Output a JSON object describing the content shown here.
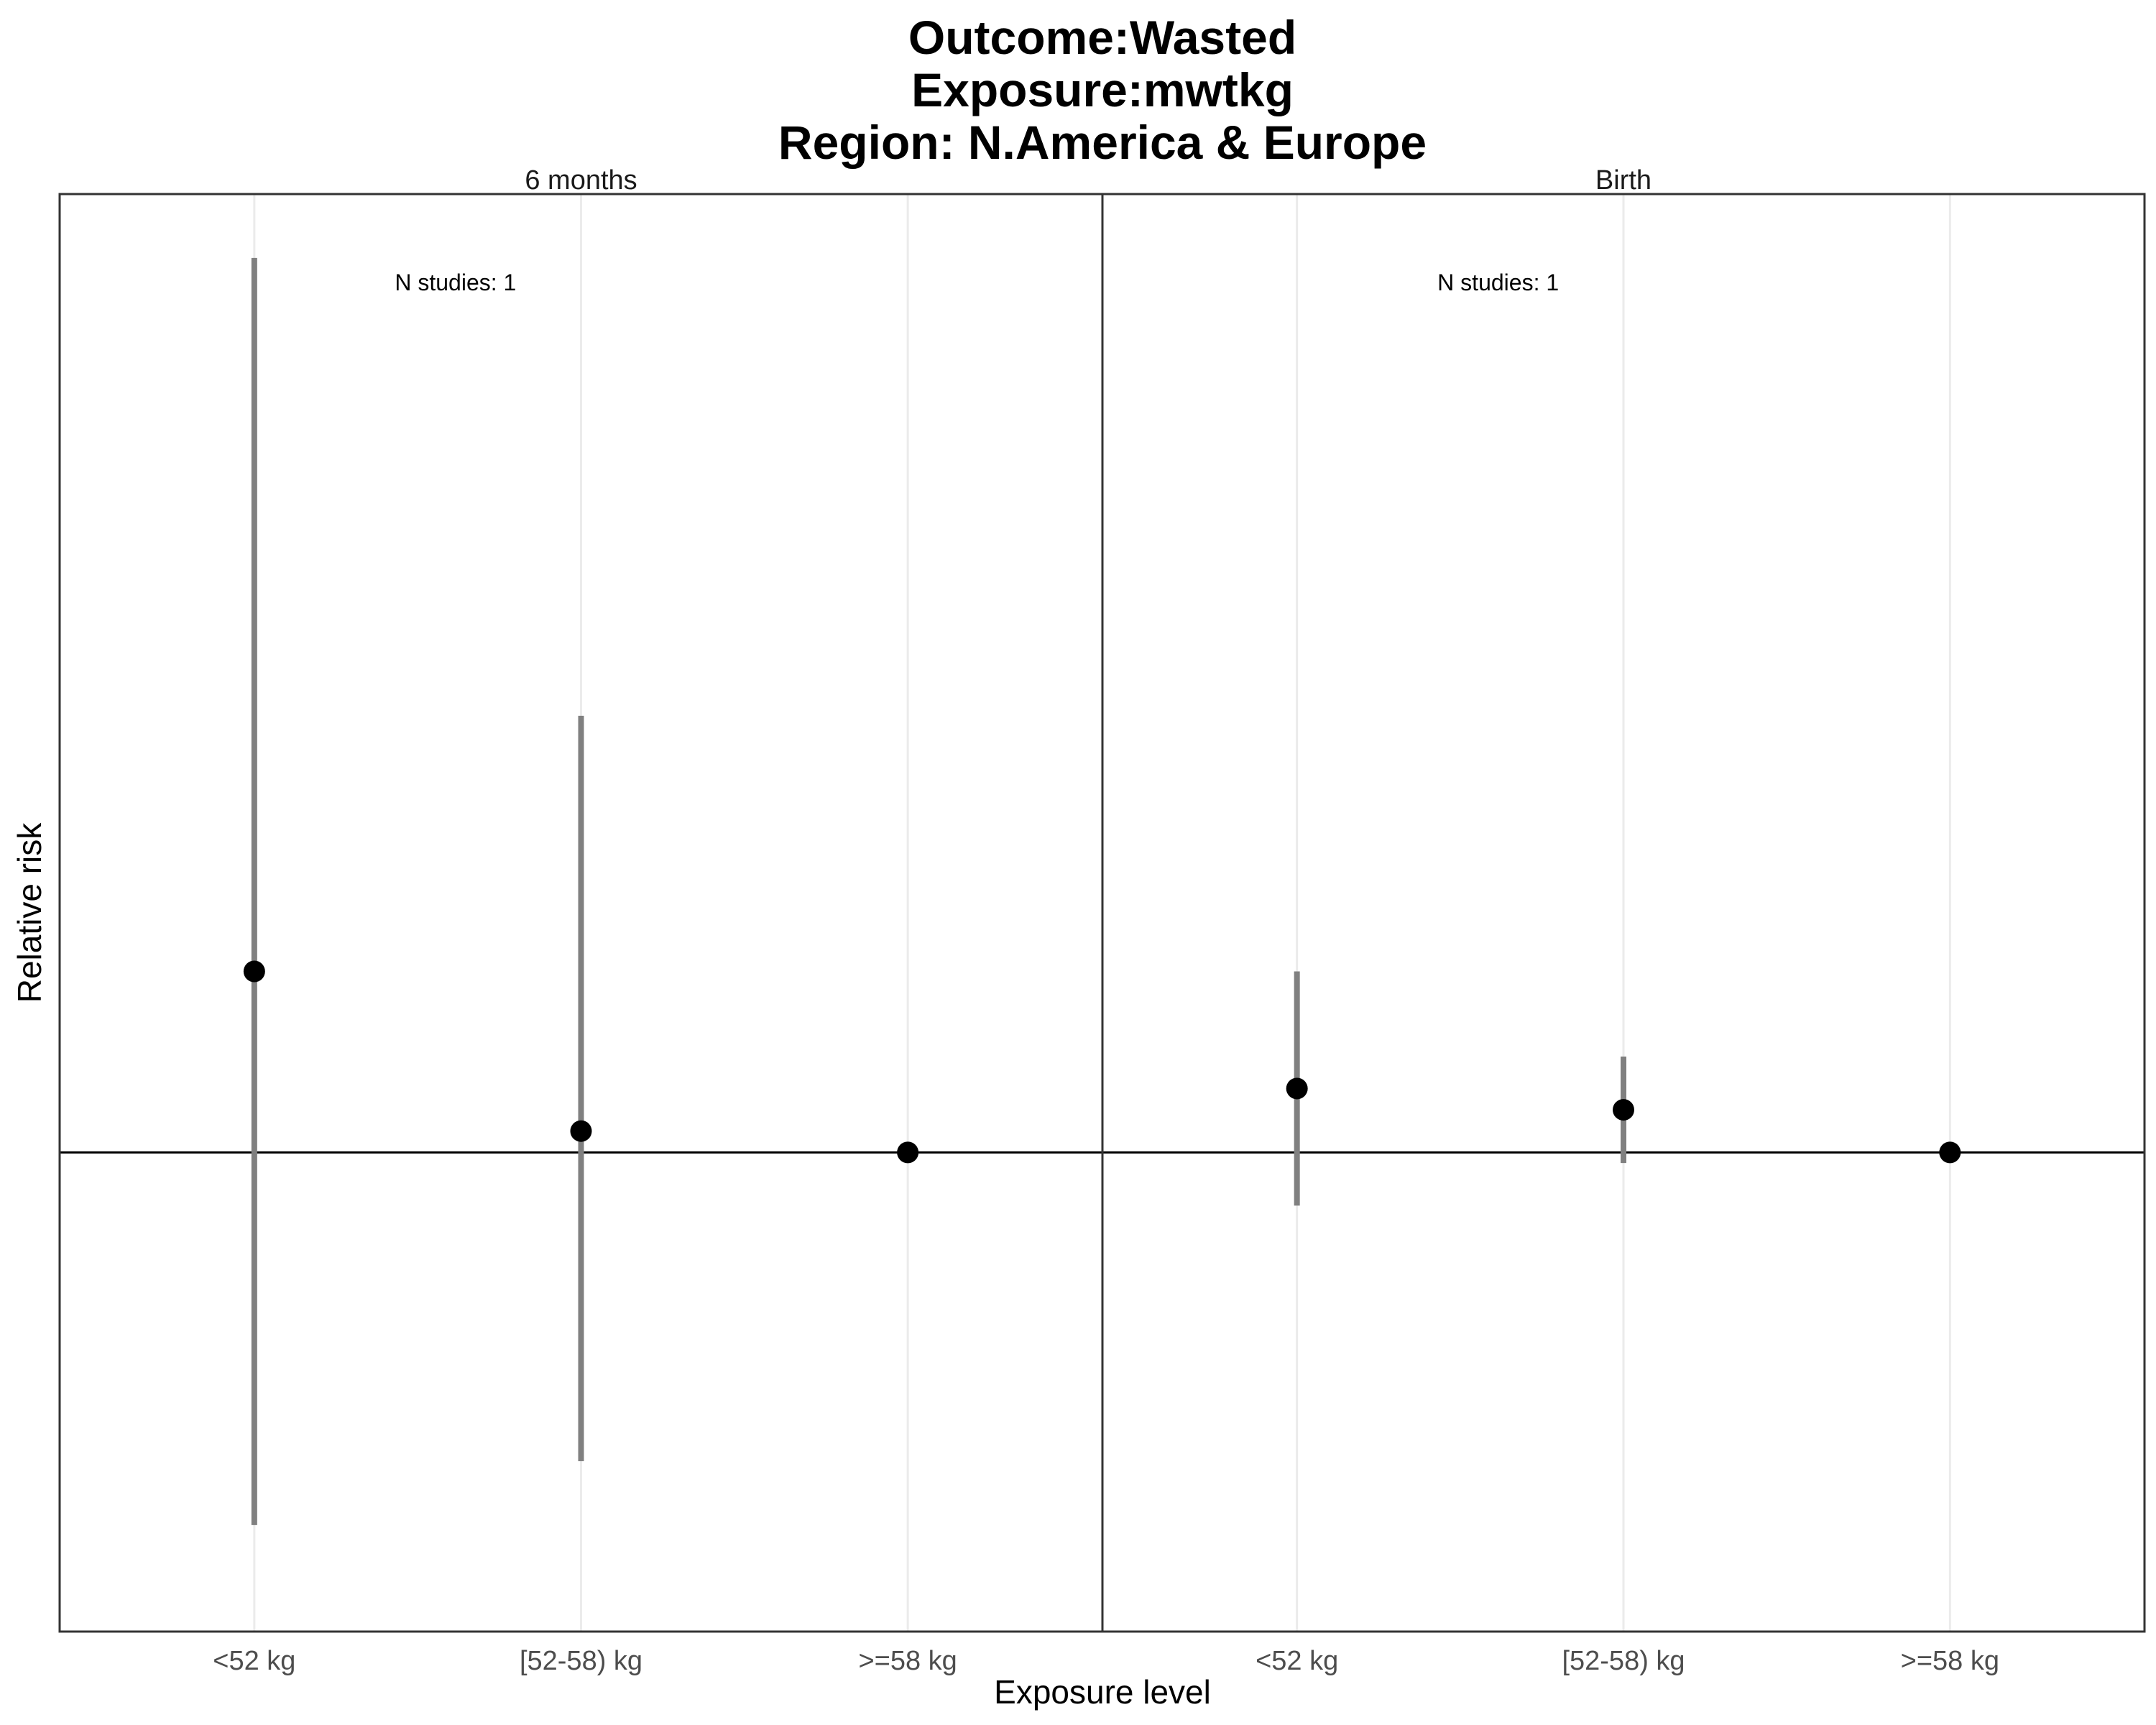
{
  "chart_data": {
    "type": "scatter",
    "title_lines": [
      "Outcome:Wasted",
      "Exposure:mwtkg",
      "Region: N.America & Europe"
    ],
    "xlabel": "Exposure level",
    "ylabel": "Relative risk",
    "reference_line": 1,
    "ylim": [
      0.55,
      1.9
    ],
    "grid": "vertical-major-only",
    "categories": [
      "<52 kg",
      "[52-58) kg",
      ">=58 kg"
    ],
    "panels": [
      {
        "label": "6 months",
        "annotation": "N studies: 1",
        "points": [
          {
            "category": "<52 kg",
            "estimate": 1.17,
            "ci_lower": 0.65,
            "ci_upper": 1.84
          },
          {
            "category": "[52-58) kg",
            "estimate": 1.02,
            "ci_lower": 0.71,
            "ci_upper": 1.41
          },
          {
            "category": ">=58 kg",
            "estimate": 1.0,
            "ci_lower": null,
            "ci_upper": null
          }
        ]
      },
      {
        "label": "Birth",
        "annotation": "N studies: 1",
        "points": [
          {
            "category": "<52 kg",
            "estimate": 1.06,
            "ci_lower": 0.95,
            "ci_upper": 1.17
          },
          {
            "category": "[52-58) kg",
            "estimate": 1.04,
            "ci_lower": 0.99,
            "ci_upper": 1.09
          },
          {
            "category": ">=58 kg",
            "estimate": 1.0,
            "ci_lower": null,
            "ci_upper": null
          }
        ]
      }
    ],
    "colors": {
      "point": "#000000",
      "ci": "#808080",
      "grid": "#ebebeb",
      "frame": "#333333"
    }
  }
}
